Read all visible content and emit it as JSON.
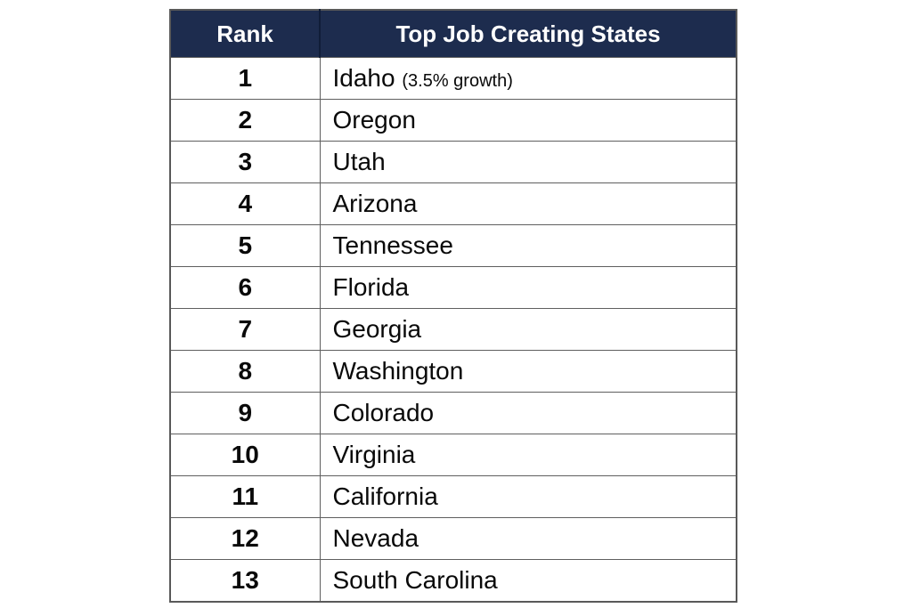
{
  "chart_data": {
    "type": "table",
    "title": "Top Job Creating States",
    "columns": [
      "Rank",
      "Top Job Creating States"
    ],
    "rows": [
      [
        "1",
        "Idaho (3.5% growth)"
      ],
      [
        "2",
        "Oregon"
      ],
      [
        "3",
        "Utah"
      ],
      [
        "4",
        "Arizona"
      ],
      [
        "5",
        "Tennessee"
      ],
      [
        "6",
        "Florida"
      ],
      [
        "7",
        "Georgia"
      ],
      [
        "8",
        "Washington"
      ],
      [
        "9",
        "Colorado"
      ],
      [
        "10",
        "Virginia"
      ],
      [
        "11",
        "California"
      ],
      [
        "12",
        "Nevada"
      ],
      [
        "13",
        "South Carolina"
      ]
    ],
    "layout_hints": {
      "header_background": "#1d2c4e",
      "header_text_color": "#ffffff",
      "border_color": "#5f5f5f",
      "rank_column_bold": true
    }
  },
  "table": {
    "header": {
      "rank_label": "Rank",
      "states_label": "Top Job Creating States"
    },
    "rows": [
      {
        "rank": "1",
        "state": "Idaho",
        "note": "(3.5% growth)"
      },
      {
        "rank": "2",
        "state": "Oregon"
      },
      {
        "rank": "3",
        "state": "Utah"
      },
      {
        "rank": "4",
        "state": "Arizona"
      },
      {
        "rank": "5",
        "state": "Tennessee"
      },
      {
        "rank": "6",
        "state": "Florida"
      },
      {
        "rank": "7",
        "state": "Georgia"
      },
      {
        "rank": "8",
        "state": "Washington"
      },
      {
        "rank": "9",
        "state": "Colorado"
      },
      {
        "rank": "10",
        "state": "Virginia"
      },
      {
        "rank": "11",
        "state": "California"
      },
      {
        "rank": "12",
        "state": "Nevada"
      },
      {
        "rank": "13",
        "state": "South Carolina"
      }
    ]
  }
}
